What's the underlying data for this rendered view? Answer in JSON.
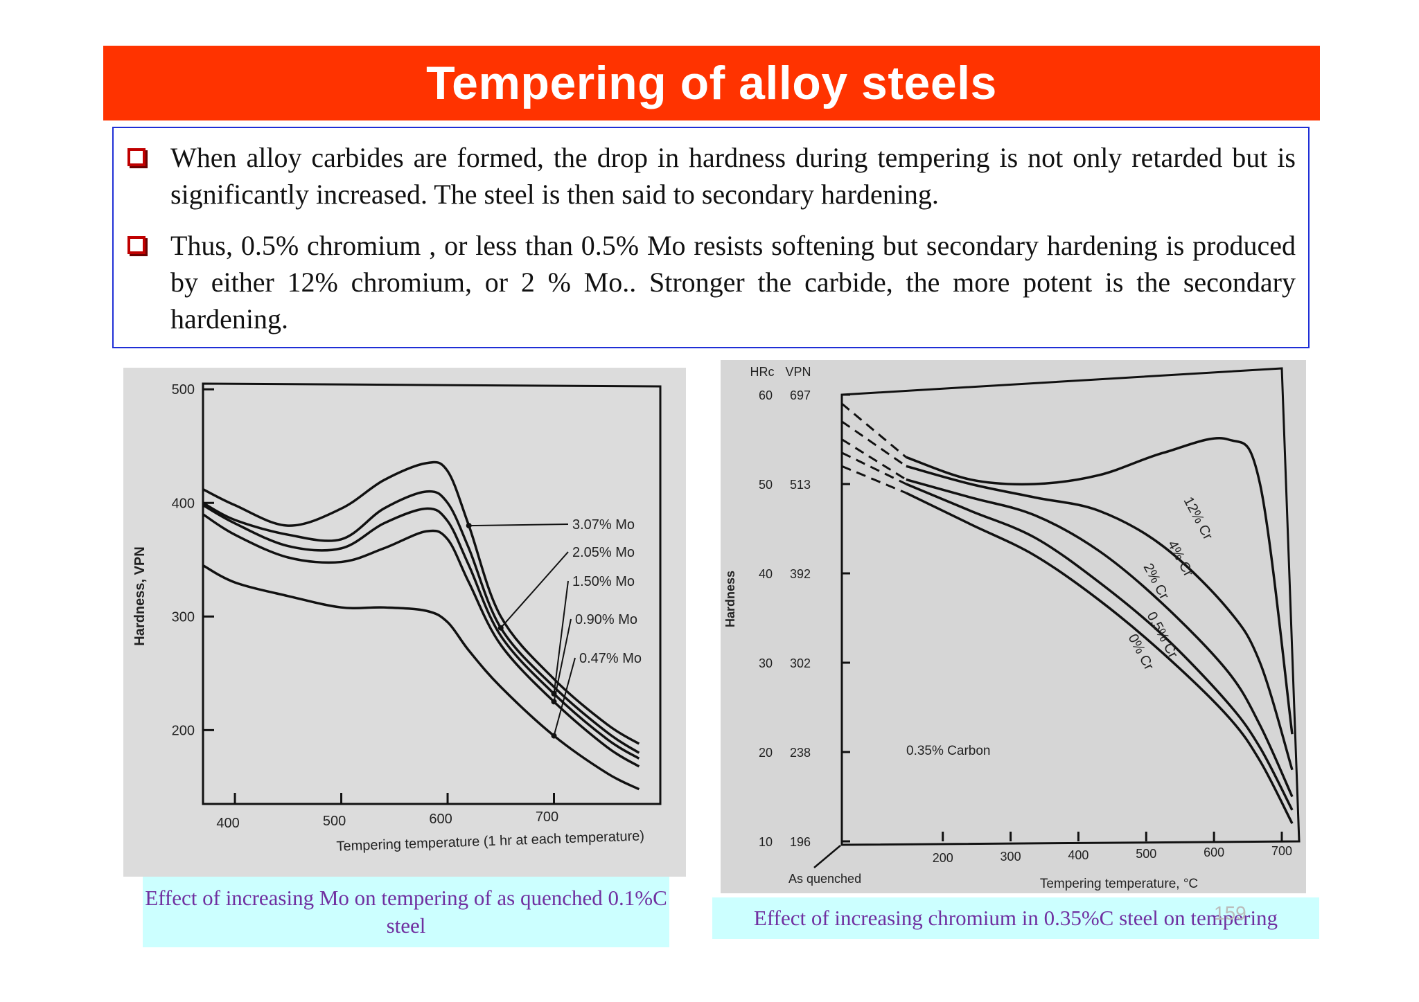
{
  "slide": {
    "title": "Tempering of alloy steels",
    "bullets": [
      "When alloy carbides are formed, the drop in hardness during tempering is not only retarded but is significantly increased. The steel is then said to secondary hardening.",
      "Thus, 0.5% chromium , or less than 0.5% Mo resists softening but secondary hardening is produced by either 12% chromium, or 2 % Mo.. Stronger the carbide, the more potent is the secondary hardening."
    ],
    "captions": {
      "left": "Effect of increasing Mo on tempering of as quenched 0.1%C steel",
      "right": "Effect of increasing chromium in 0.35%C steel on tempering"
    },
    "page_number": "159",
    "colors": {
      "title_bar": "#ff3300",
      "box_border": "#1f2fd6",
      "caption_bg": "#ccffff",
      "caption_text": "#7030a0",
      "bullet_icon": "#c00000"
    }
  },
  "chart_data": [
    {
      "type": "line",
      "title": "",
      "xlabel": "Tempering temperature (1 hr at each temperature)",
      "ylabel": "Hardness, VPN",
      "xlim": [
        370,
        800
      ],
      "ylim": [
        135,
        505
      ],
      "xticks": [
        400,
        500,
        600,
        700
      ],
      "yticks": [
        500,
        400,
        300,
        200
      ],
      "grid": false,
      "series": [
        {
          "name": "3.07% Mo",
          "x": [
            370,
            400,
            450,
            500,
            540,
            580,
            600,
            620,
            650,
            700,
            750,
            780
          ],
          "y": [
            412,
            398,
            380,
            395,
            420,
            435,
            428,
            380,
            300,
            245,
            205,
            188
          ]
        },
        {
          "name": "2.05% Mo",
          "x": [
            370,
            400,
            450,
            500,
            540,
            580,
            600,
            620,
            650,
            700,
            750,
            780
          ],
          "y": [
            400,
            385,
            372,
            368,
            395,
            410,
            400,
            360,
            290,
            238,
            198,
            180
          ]
        },
        {
          "name": "1.50% Mo",
          "x": [
            370,
            400,
            450,
            500,
            540,
            580,
            600,
            620,
            650,
            700,
            750,
            780
          ],
          "y": [
            398,
            382,
            362,
            360,
            382,
            395,
            384,
            345,
            283,
            232,
            192,
            175
          ]
        },
        {
          "name": "0.90% Mo",
          "x": [
            370,
            400,
            450,
            500,
            540,
            580,
            600,
            620,
            650,
            700,
            750,
            780
          ],
          "y": [
            390,
            372,
            352,
            348,
            360,
            375,
            368,
            330,
            275,
            225,
            185,
            168
          ]
        },
        {
          "name": "0.47% Mo",
          "x": [
            370,
            400,
            450,
            500,
            540,
            580,
            600,
            620,
            650,
            700,
            750,
            780
          ],
          "y": [
            345,
            330,
            318,
            308,
            308,
            305,
            295,
            270,
            238,
            195,
            162,
            148
          ]
        }
      ]
    },
    {
      "type": "line",
      "title": "0.35% Carbon",
      "xlabel": "Tempering temperature, °C",
      "ylabel": "Hardness",
      "y_axis_scales": {
        "HRc": [
          "60",
          "50",
          "40",
          "30",
          "20",
          "10"
        ],
        "VPN": [
          "697",
          "513",
          "392",
          "302",
          "238",
          "196"
        ]
      },
      "x_note": "As quenched",
      "xlim": [
        0,
        700
      ],
      "ylim": [
        10,
        60
      ],
      "xticks": [
        200,
        300,
        400,
        500,
        600,
        700
      ],
      "yticks": [
        60,
        50,
        40,
        30,
        20,
        10
      ],
      "grid": false,
      "series": [
        {
          "name": "12% Cr",
          "x": [
            0,
            100,
            200,
            300,
            400,
            500,
            600,
            650,
            700
          ],
          "y": [
            59,
            53,
            50.5,
            50,
            51,
            53.5,
            55,
            50,
            22
          ]
        },
        {
          "name": "4% Cr",
          "x": [
            0,
            100,
            200,
            300,
            400,
            500,
            600,
            650,
            700
          ],
          "y": [
            57,
            52,
            50,
            48.5,
            47,
            43,
            36,
            30,
            18
          ]
        },
        {
          "name": "2% Cr",
          "x": [
            0,
            100,
            200,
            300,
            400,
            500,
            600,
            650,
            700
          ],
          "y": [
            55,
            50.5,
            48.5,
            46.5,
            42.5,
            36.5,
            29,
            23,
            15
          ]
        },
        {
          "name": "0.5% Cr",
          "x": [
            0,
            100,
            200,
            300,
            400,
            500,
            600,
            650,
            700
          ],
          "y": [
            53.5,
            50,
            47,
            44,
            39,
            33,
            25.5,
            20.5,
            13.5
          ]
        },
        {
          "name": "0% Cr",
          "x": [
            0,
            100,
            200,
            300,
            400,
            500,
            600,
            650,
            700
          ],
          "y": [
            52,
            49,
            45.5,
            42,
            37,
            31,
            24,
            19,
            12
          ]
        }
      ]
    }
  ]
}
